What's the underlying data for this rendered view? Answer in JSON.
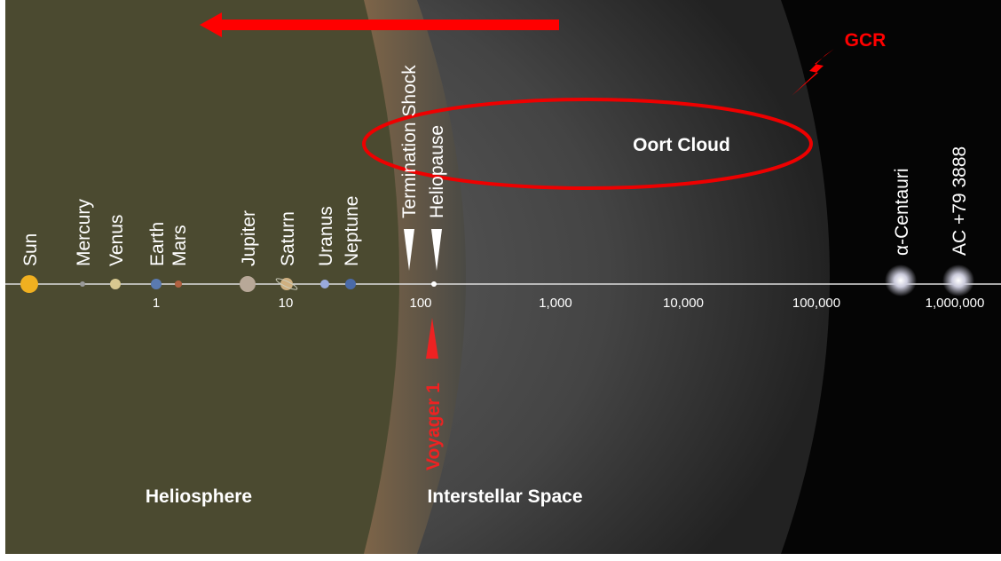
{
  "bodies": [
    "Sun",
    "Mercury",
    "Venus",
    "Earth",
    "Mars",
    "Jupiter",
    "Saturn",
    "Uranus",
    "Neptune"
  ],
  "boundaries": [
    "Termination Shock",
    "Heliopause"
  ],
  "stars": [
    "α-Centauri",
    "AC +79 3888"
  ],
  "scale_labels": [
    "1",
    "10",
    "100",
    "1,000",
    "10,000",
    "100,000",
    "1,000,000"
  ],
  "regions": [
    "Heliosphere",
    "Interstellar Space"
  ],
  "annotations": {
    "oort_cloud": "Oort Cloud",
    "gcr": "GCR",
    "voyager": "Voyager 1"
  }
}
